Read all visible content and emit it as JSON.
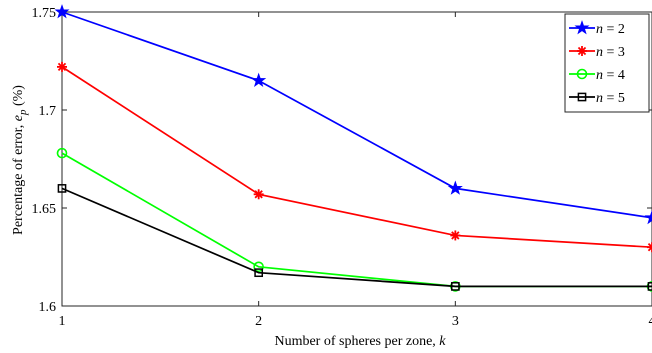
{
  "chart_data": {
    "type": "line",
    "x": [
      1,
      2,
      3,
      4
    ],
    "series": [
      {
        "name": "n = 2",
        "values": [
          1.75,
          1.715,
          1.66,
          1.645
        ],
        "color": "#0000ff",
        "marker": "star"
      },
      {
        "name": "n = 3",
        "values": [
          1.722,
          1.657,
          1.636,
          1.63
        ],
        "color": "#ff0000",
        "marker": "asterisk"
      },
      {
        "name": "n = 4",
        "values": [
          1.678,
          1.62,
          1.61,
          1.61
        ],
        "color": "#00ff00",
        "marker": "circle"
      },
      {
        "name": "n = 5",
        "values": [
          1.66,
          1.617,
          1.61,
          1.61
        ],
        "color": "#000000",
        "marker": "square"
      }
    ],
    "xlabel": "Number of spheres per zone, k",
    "ylabel": "Percentage of error, e_p (%)",
    "xlim": [
      1,
      4
    ],
    "ylim": [
      1.6,
      1.75
    ],
    "xticks": [
      "1",
      "2",
      "3",
      "4"
    ],
    "yticks": [
      "1.6",
      "1.65",
      "1.7",
      "1.75"
    ],
    "grid": false,
    "legend_position": "top-right",
    "legend_prefix": "n",
    "legend_values": [
      "2",
      "3",
      "4",
      "5"
    ],
    "xlabel_text": "Number of spheres per zone, ",
    "xlabel_var": "k",
    "ylabel_text": "Percentage of error, ",
    "ylabel_var": "e",
    "ylabel_sub": "p",
    "ylabel_unit": " (%)"
  }
}
